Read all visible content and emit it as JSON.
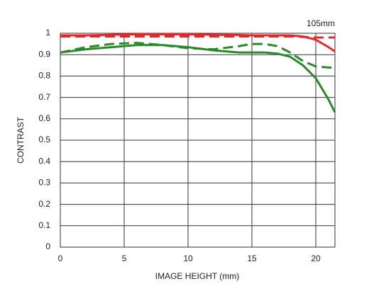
{
  "chart_data": {
    "type": "line",
    "annotation": "105mm",
    "x_label": "IMAGE HEIGHT (mm)",
    "y_label": "CONTRAST",
    "x": [
      0,
      2,
      4,
      6,
      8,
      10,
      12,
      14,
      15,
      16,
      17,
      18,
      19,
      20,
      21,
      21.5
    ],
    "series": [
      {
        "color": "#e8262a",
        "dashed": false,
        "values": [
          0.99,
          0.99,
          0.993,
          0.995,
          0.995,
          0.995,
          0.993,
          0.992,
          0.99,
          0.99,
          0.99,
          0.99,
          0.985,
          0.97,
          0.935,
          0.915
        ]
      },
      {
        "color": "#e8262a",
        "dashed": true,
        "values": [
          0.985,
          0.985,
          0.985,
          0.985,
          0.985,
          0.985,
          0.985,
          0.985,
          0.985,
          0.985,
          0.985,
          0.985,
          0.983,
          0.98,
          0.98,
          0.98
        ]
      },
      {
        "color": "#2a8a2a",
        "dashed": false,
        "values": [
          0.91,
          0.925,
          0.935,
          0.945,
          0.945,
          0.935,
          0.92,
          0.91,
          0.91,
          0.91,
          0.905,
          0.89,
          0.85,
          0.79,
          0.69,
          0.63
        ]
      },
      {
        "color": "#2a8a2a",
        "dashed": true,
        "values": [
          0.91,
          0.935,
          0.95,
          0.955,
          0.945,
          0.93,
          0.925,
          0.94,
          0.95,
          0.95,
          0.94,
          0.91,
          0.87,
          0.845,
          0.84,
          0.84
        ]
      }
    ],
    "xlim": [
      0,
      21.5
    ],
    "xticks": [
      0,
      5,
      10,
      15,
      20
    ],
    "ylim": [
      0,
      1
    ],
    "yticks": [
      0,
      0.1,
      0.2,
      0.3,
      0.4,
      0.5,
      0.6,
      0.7,
      0.8,
      0.9,
      1
    ],
    "grid": true
  }
}
